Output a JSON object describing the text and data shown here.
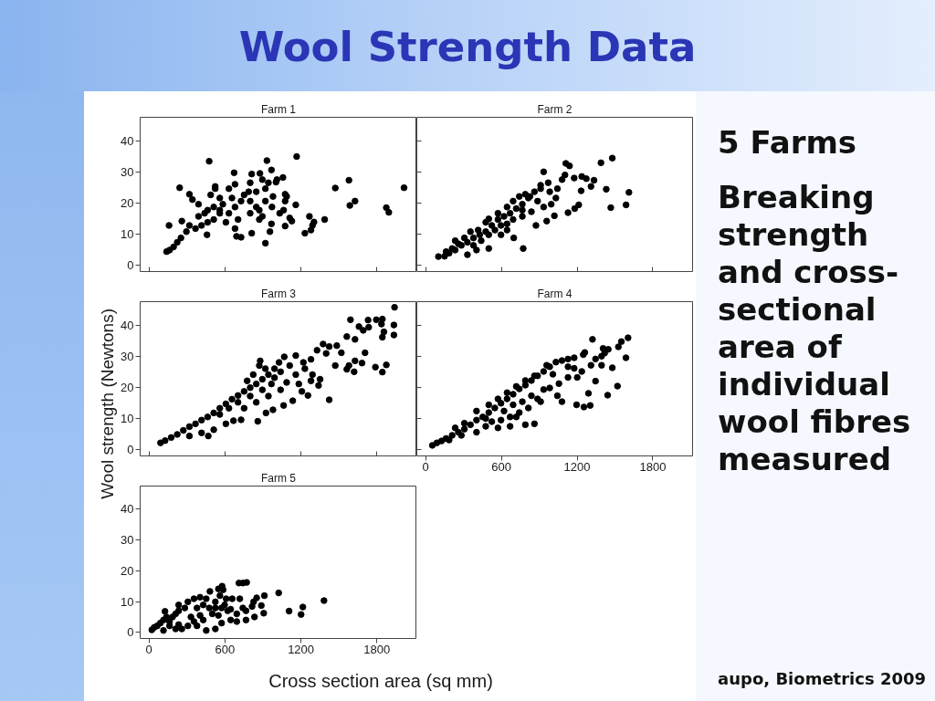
{
  "chart_data": [
    {
      "type": "other",
      "title": "Wool Strength Data",
      "annotations": [
        "5 Farms",
        "Breaking strength and cross-sectional area of individual wool fibres measured",
        "aupo, Biometrics 2009"
      ]
    },
    {
      "type": "scatter",
      "title": "Farm 1",
      "color": "#000000",
      "marker": "circle",
      "xlim": [
        -70,
        2115
      ],
      "ylim": [
        -2,
        47.5
      ],
      "xticks": [
        0,
        600,
        1200,
        1800
      ],
      "yticks": [
        0,
        10,
        20,
        30,
        40
      ],
      "tick_labels": "y",
      "x": [
        139,
        163,
        194,
        223,
        252,
        158,
        242,
        475,
        931,
        1166,
        672,
        811,
        967,
        1058,
        319,
        343,
        391,
        259,
        319,
        458,
        691,
        727,
        811,
        919,
        955,
        967,
        1075,
        1111,
        1128,
        1159,
        1075,
        1267,
        1303,
        1291,
        1279,
        1231,
        1387,
        1471,
        1579,
        1586,
        1627,
        1874,
        1894,
        2014,
        1032,
        1063,
        971,
        895,
        871,
        1075,
        1087,
        1003,
        1010,
        876,
        523,
        523,
        487,
        559,
        631,
        679,
        799,
        895,
        607,
        679,
        511,
        391,
        439,
        559,
        679,
        799,
        751,
        847,
        919,
        559,
        463,
        367,
        295,
        415,
        631,
        703,
        799,
        847,
        727,
        655,
        583,
        511,
        463,
        787,
        943,
        979,
        919,
        871
      ],
      "values": [
        4.4,
        4.9,
        5.9,
        7.4,
        8.8,
        12.8,
        24.9,
        33.4,
        33.6,
        34.9,
        29.7,
        29.3,
        30.6,
        28.2,
        22.8,
        21.1,
        19.6,
        14.2,
        12.8,
        9.8,
        9.3,
        9.0,
        10.3,
        7.1,
        10.8,
        13.3,
        12.6,
        15.2,
        14.2,
        19.4,
        20.6,
        15.7,
        13.9,
        12.8,
        11.3,
        10.3,
        14.7,
        24.8,
        27.3,
        19.2,
        20.6,
        18.5,
        17.0,
        24.9,
        16.7,
        17.7,
        18.7,
        15.7,
        14.7,
        22.8,
        22.1,
        26.7,
        27.5,
        29.5,
        25.3,
        24.6,
        22.6,
        21.6,
        24.6,
        26.0,
        26.5,
        27.5,
        13.8,
        11.8,
        14.7,
        15.7,
        16.7,
        17.7,
        18.7,
        20.6,
        22.6,
        23.6,
        24.6,
        16.7,
        13.8,
        11.8,
        10.8,
        12.8,
        16.7,
        14.7,
        16.7,
        18.7,
        20.6,
        21.6,
        19.6,
        18.7,
        17.7,
        23.6,
        26.5,
        22.1,
        20.6,
        17.7
      ]
    },
    {
      "type": "scatter",
      "title": "Farm 2",
      "color": "#000000",
      "marker": "circle",
      "xlim": [
        -70,
        2115
      ],
      "ylim": [
        -2,
        47.5
      ],
      "xticks": [
        0,
        600,
        1200,
        1800
      ],
      "yticks": [
        0,
        10,
        20,
        30,
        40
      ],
      "tick_labels": false,
      "x": [
        101,
        150,
        186,
        234,
        283,
        331,
        379,
        428,
        476,
        524,
        573,
        621,
        669,
        718,
        766,
        814,
        862,
        911,
        935,
        971,
        1044,
        1081,
        1104,
        1111,
        1140,
        1177,
        1237,
        1273,
        1334,
        1310,
        1389,
        1479,
        1431,
        1611,
        1588,
        1467,
        1232,
        1213,
        1181,
        1128,
        1020,
        959,
        874,
        773,
        698,
        500,
        331,
        403,
        597,
        645,
        549,
        500,
        440,
        379,
        259,
        210,
        307,
        416,
        500,
        693,
        742,
        790,
        826,
        887,
        935,
        995,
        1032,
        911,
        983,
        838,
        766,
        693,
        645,
        597,
        766,
        645,
        573,
        476,
        355,
        234,
        162
      ],
      "values": [
        2.8,
        2.9,
        3.9,
        4.9,
        6.4,
        7.4,
        8.8,
        9.8,
        10.8,
        12.8,
        14.7,
        15.7,
        16.7,
        18.2,
        19.6,
        21.6,
        23.6,
        24.6,
        30.0,
        26.5,
        24.6,
        27.5,
        29.0,
        32.7,
        31.9,
        28.0,
        28.5,
        27.8,
        27.3,
        25.3,
        32.9,
        34.4,
        24.4,
        23.4,
        19.4,
        18.5,
        23.9,
        19.4,
        18.2,
        16.9,
        15.9,
        14.2,
        12.8,
        5.4,
        8.8,
        5.4,
        3.4,
        4.9,
        9.8,
        11.3,
        11.3,
        9.8,
        7.9,
        6.4,
        6.9,
        5.4,
        8.8,
        11.3,
        14.9,
        20.6,
        22.1,
        22.8,
        22.1,
        20.6,
        18.7,
        19.6,
        21.6,
        25.7,
        23.6,
        17.2,
        15.7,
        14.7,
        13.3,
        12.8,
        17.7,
        18.7,
        16.7,
        13.8,
        10.8,
        7.9,
        4.4
      ]
    },
    {
      "type": "scatter",
      "title": "Farm 3",
      "ylabel": "Wool strength (Newtons)",
      "color": "#000000",
      "marker": "circle",
      "xlim": [
        -70,
        2115
      ],
      "ylim": [
        -2,
        47.5
      ],
      "xticks": [
        0,
        600,
        1200,
        1800
      ],
      "yticks": [
        0,
        10,
        20,
        30,
        40
      ],
      "tick_labels": "y",
      "x": [
        91,
        127,
        175,
        223,
        271,
        319,
        367,
        415,
        463,
        468,
        511,
        559,
        607,
        655,
        703,
        751,
        799,
        847,
        878,
        895,
        943,
        991,
        1027,
        1068,
        1159,
        1219,
        1279,
        1327,
        1375,
        1423,
        1483,
        1519,
        1562,
        1591,
        1627,
        1658,
        1692,
        1735,
        1730,
        1795,
        1843,
        1836,
        1855,
        1934,
        1934,
        1939,
        1843,
        1874,
        1788,
        1843,
        1706,
        1682,
        1627,
        1620,
        1562,
        1579,
        1423,
        1255,
        1339,
        1351,
        1291,
        1207,
        1135,
        1063,
        979,
        924,
        859,
        727,
        667,
        607,
        511,
        415,
        319,
        751,
        847,
        943,
        1039,
        1087,
        1159,
        1231,
        967,
        895,
        799,
        703,
        631,
        559,
        1039,
        1111,
        919,
        991,
        823,
        775,
        871,
        1183,
        1279,
        1399,
        1471
      ],
      "values": [
        2.2,
        2.9,
        3.9,
        4.9,
        6.2,
        7.4,
        8.3,
        9.5,
        10.5,
        4.4,
        11.8,
        13.3,
        14.7,
        16.2,
        17.4,
        18.7,
        19.9,
        21.1,
        28.5,
        22.6,
        24.1,
        26.0,
        28.0,
        29.8,
        30.2,
        28.0,
        29.0,
        31.9,
        33.9,
        33.1,
        33.4,
        31.1,
        36.3,
        41.7,
        35.4,
        39.5,
        38.3,
        39.3,
        41.6,
        41.7,
        41.9,
        40.3,
        37.8,
        40.0,
        36.8,
        45.7,
        36.1,
        27.2,
        26.5,
        24.9,
        31.1,
        27.8,
        28.5,
        25.0,
        25.8,
        27.0,
        16.0,
        17.4,
        20.6,
        22.6,
        24.1,
        18.7,
        15.7,
        14.2,
        12.8,
        11.8,
        9.1,
        9.6,
        9.3,
        8.3,
        6.4,
        5.4,
        4.4,
        13.3,
        15.2,
        17.2,
        19.2,
        21.6,
        24.1,
        26.0,
        21.1,
        19.2,
        17.2,
        15.2,
        13.3,
        11.3,
        25.0,
        27.0,
        26.0,
        23.1,
        24.1,
        22.1,
        27.0,
        21.1,
        22.1,
        30.9,
        27.0
      ]
    },
    {
      "type": "scatter",
      "title": "Farm 4",
      "color": "#000000",
      "marker": "circle",
      "xlim": [
        -70,
        2115
      ],
      "ylim": [
        -2,
        47.5
      ],
      "xticks": [
        0,
        600,
        1200,
        1800
      ],
      "yticks": [
        0,
        10,
        20,
        30,
        40
      ],
      "tick_labels": "x",
      "x": [
        53,
        89,
        126,
        162,
        210,
        259,
        307,
        355,
        403,
        452,
        500,
        548,
        597,
        645,
        693,
        742,
        790,
        838,
        887,
        935,
        983,
        1032,
        1080,
        1128,
        1177,
        1249,
        1261,
        1322,
        1346,
        1394,
        1406,
        1418,
        1447,
        1479,
        1527,
        1551,
        1587,
        1604,
        1520,
        1442,
        1346,
        1290,
        1304,
        1254,
        1196,
        1201,
        1128,
        1080,
        1044,
        983,
        911,
        862,
        790,
        718,
        669,
        573,
        476,
        403,
        283,
        186,
        234,
        307,
        403,
        500,
        573,
        645,
        718,
        790,
        862,
        959,
        1008,
        1056,
        935,
        887,
        814,
        742,
        669,
        597,
        524,
        476,
        766,
        838,
        693,
        621,
        1128,
        1177,
        1237,
        1310,
        1394
      ],
      "values": [
        1.4,
        2.2,
        2.8,
        3.6,
        4.6,
        5.6,
        6.6,
        8.0,
        9.5,
        10.5,
        11.9,
        13.4,
        14.9,
        16.3,
        17.8,
        19.5,
        20.7,
        22.2,
        23.7,
        25.1,
        26.6,
        28.1,
        28.6,
        29.1,
        29.5,
        30.5,
        31.2,
        35.4,
        29.1,
        27.1,
        32.5,
        31.0,
        32.2,
        26.3,
        33.0,
        34.7,
        29.5,
        35.9,
        20.4,
        17.5,
        22.0,
        18.1,
        14.2,
        13.7,
        14.4,
        23.2,
        23.2,
        15.4,
        17.3,
        19.8,
        15.4,
        8.3,
        8.0,
        10.5,
        7.5,
        7.0,
        7.5,
        5.6,
        4.6,
        3.1,
        7.0,
        8.5,
        12.4,
        14.4,
        16.3,
        18.3,
        20.3,
        22.2,
        23.7,
        27.1,
        24.2,
        21.2,
        19.3,
        16.3,
        13.4,
        11.9,
        10.5,
        9.5,
        9.0,
        10.0,
        15.4,
        17.3,
        14.4,
        12.4,
        26.6,
        26.1,
        25.1,
        27.1,
        30.0
      ]
    },
    {
      "type": "scatter",
      "title": "Farm 5",
      "xlabel": "Cross section area (sq mm)",
      "color": "#000000",
      "marker": "circle",
      "xlim": [
        -70,
        2115
      ],
      "ylim": [
        -2,
        47.5
      ],
      "xticks": [
        0,
        600,
        1200,
        1800
      ],
      "yticks": [
        0,
        10,
        20,
        30,
        40
      ],
      "x": [
        22,
        41,
        65,
        89,
        114,
        126,
        162,
        186,
        210,
        234,
        259,
        307,
        355,
        379,
        428,
        452,
        403,
        481,
        548,
        577,
        560,
        524,
        500,
        452,
        524,
        573,
        645,
        693,
        657,
        717,
        710,
        741,
        771,
        741,
        766,
        814,
        826,
        850,
        887,
        911,
        906,
        833,
        766,
        693,
        621,
        573,
        1024,
        1106,
        1201,
        1215,
        1382,
        234,
        307,
        355,
        283,
        138,
        162,
        234,
        331,
        403,
        476,
        524,
        597,
        548,
        428,
        379,
        210,
        114,
        645,
        609,
        585
      ],
      "values": [
        0.8,
        1.6,
        2.1,
        3.0,
        4.0,
        6.8,
        3.5,
        5.0,
        6.0,
        7.0,
        1.1,
        2.1,
        3.5,
        7.9,
        8.9,
        10.9,
        11.4,
        13.3,
        14.1,
        15.0,
        11.9,
        9.9,
        6.0,
        0.6,
        1.1,
        3.0,
        4.0,
        3.5,
        10.9,
        10.9,
        16.0,
        16.0,
        16.2,
        7.9,
        7.0,
        8.4,
        9.9,
        11.2,
        8.7,
        11.9,
        6.2,
        5.0,
        4.0,
        6.0,
        7.0,
        7.9,
        12.8,
        6.9,
        5.8,
        8.2,
        10.3,
        8.9,
        9.9,
        10.9,
        7.9,
        5.0,
        2.1,
        2.5,
        5.0,
        5.5,
        7.9,
        7.9,
        8.9,
        5.5,
        4.0,
        2.1,
        1.1,
        0.6,
        7.5,
        10.9,
        13.8
      ]
    }
  ]
}
